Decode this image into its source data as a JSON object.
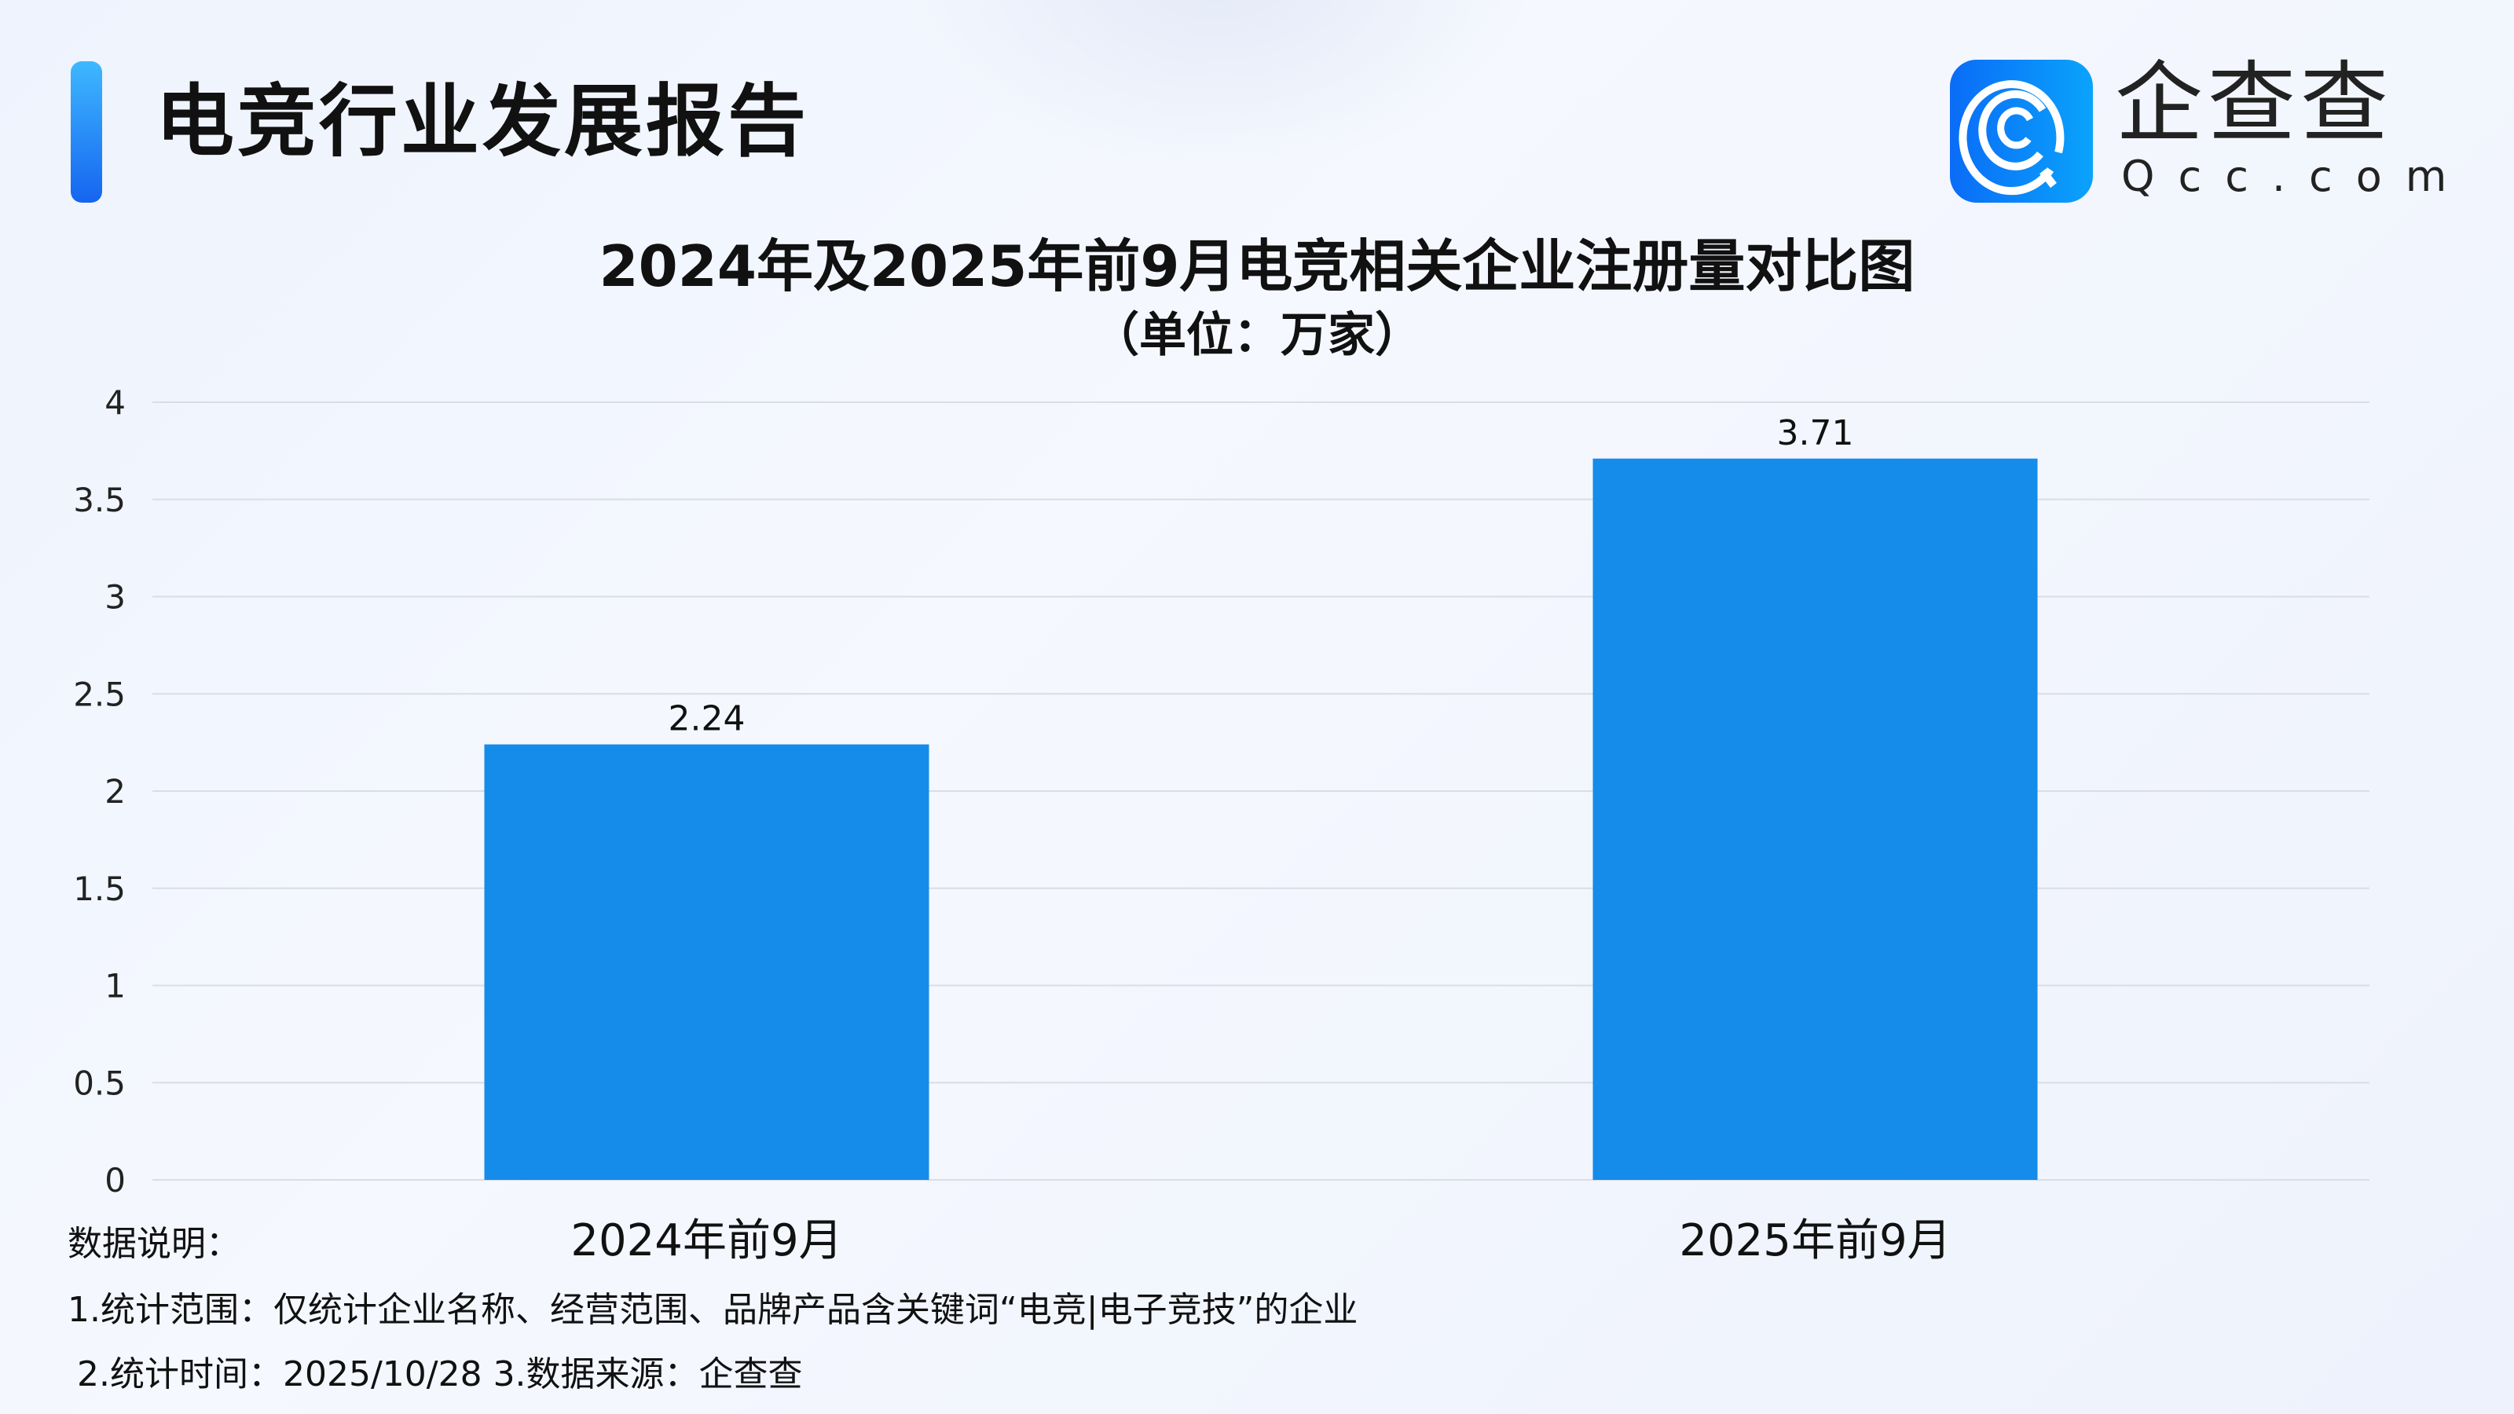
{
  "header": {
    "title": "电竞行业发展报告",
    "brand_name": "企查查",
    "brand_domain": "Qcc.com",
    "logo_icon": "qcc-logo-icon"
  },
  "colors": {
    "bar": "#158bea",
    "accent": "#1a78f2",
    "grid": "#d9dde4"
  },
  "chart_data": {
    "type": "bar",
    "title": "2024年及2025年前9月电竞相关企业注册量对比图",
    "subtitle": "（单位：万家）",
    "categories": [
      "2024年前9月",
      "2025年前9月"
    ],
    "values": [
      2.24,
      3.71
    ],
    "value_labels": [
      "2.24",
      "3.71"
    ],
    "ylim": [
      0,
      4
    ],
    "yticks": [
      0,
      0.5,
      1,
      1.5,
      2,
      2.5,
      3,
      3.5,
      4
    ],
    "ytick_labels": [
      "0",
      "0.5",
      "1",
      "1.5",
      "2",
      "2.5",
      "3",
      "3.5",
      "4"
    ],
    "grid": true,
    "legend": "none"
  },
  "notes": {
    "heading": "数据说明：",
    "line1": "1.统计范围：仅统计企业名称、经营范围、品牌产品含关键词“电竞|电子竞技”的企业",
    "line2": "2.统计时间：2025/10/28 3.数据来源：企查查"
  }
}
